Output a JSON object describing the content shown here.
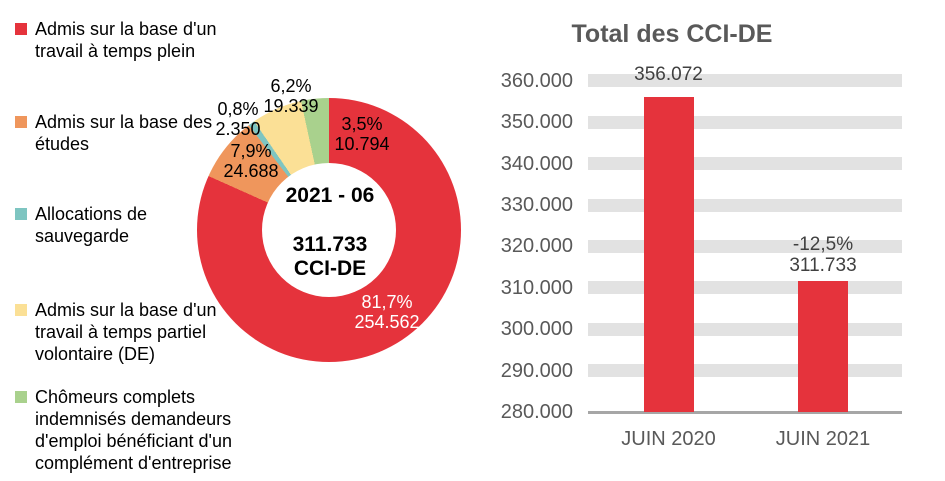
{
  "chart_data": [
    {
      "type": "donut",
      "center": {
        "period": "2021 - 06",
        "total": "311.733",
        "unit": "CCI-DE"
      },
      "slices": [
        {
          "name": "Admis sur la base d'un\ntravail à temps plein",
          "pct": 81.7,
          "pct_label": "81,7%",
          "value": 254562,
          "value_label": "254.562",
          "color": "#E5333C"
        },
        {
          "name": "Admis sur la base des\nétudes",
          "pct": 7.9,
          "pct_label": "7,9%",
          "value": 24688,
          "value_label": "24.688",
          "color": "#EF965C"
        },
        {
          "name": "Allocations de\nsauvegarde",
          "pct": 0.8,
          "pct_label": "0,8%",
          "value": 2350,
          "value_label": "2.350",
          "color": "#7EC5C1"
        },
        {
          "name": "Admis sur la base d'un\ntravail à temps partiel\nvolontaire (DE)",
          "pct": 6.2,
          "pct_label": "6,2%",
          "value": 19339,
          "value_label": "19.339",
          "color": "#FBE096"
        },
        {
          "name": "Chômeurs complets\nindemnisés demandeurs\nd'emploi bénéficiant d'un\ncomplément d'entreprise",
          "pct": 3.5,
          "pct_label": "3,5%",
          "value": 10794,
          "value_label": "10.794",
          "color": "#A9D18D"
        }
      ],
      "legend_position": "left",
      "start_angle_deg": 0,
      "clockwise": true
    },
    {
      "type": "bar",
      "title": "Total des CCI-DE",
      "categories": [
        "JUIN 2020",
        "JUIN 2021"
      ],
      "values": [
        356072,
        311733
      ],
      "bar_labels": [
        [
          "356.072"
        ],
        [
          "-12,5%",
          "311.733"
        ]
      ],
      "ylim": [
        280000,
        360000
      ],
      "ytick_step": 10000,
      "ytick_labels": [
        "360.000",
        "350.000",
        "340.000",
        "330.000",
        "320.000",
        "310.000",
        "300.000",
        "290.000",
        "280.000"
      ],
      "bar_color": "#E5333C",
      "gridline_color": "#E2E2E2",
      "axis_color": "#A6A6A6",
      "grid": true,
      "legend": false
    }
  ]
}
